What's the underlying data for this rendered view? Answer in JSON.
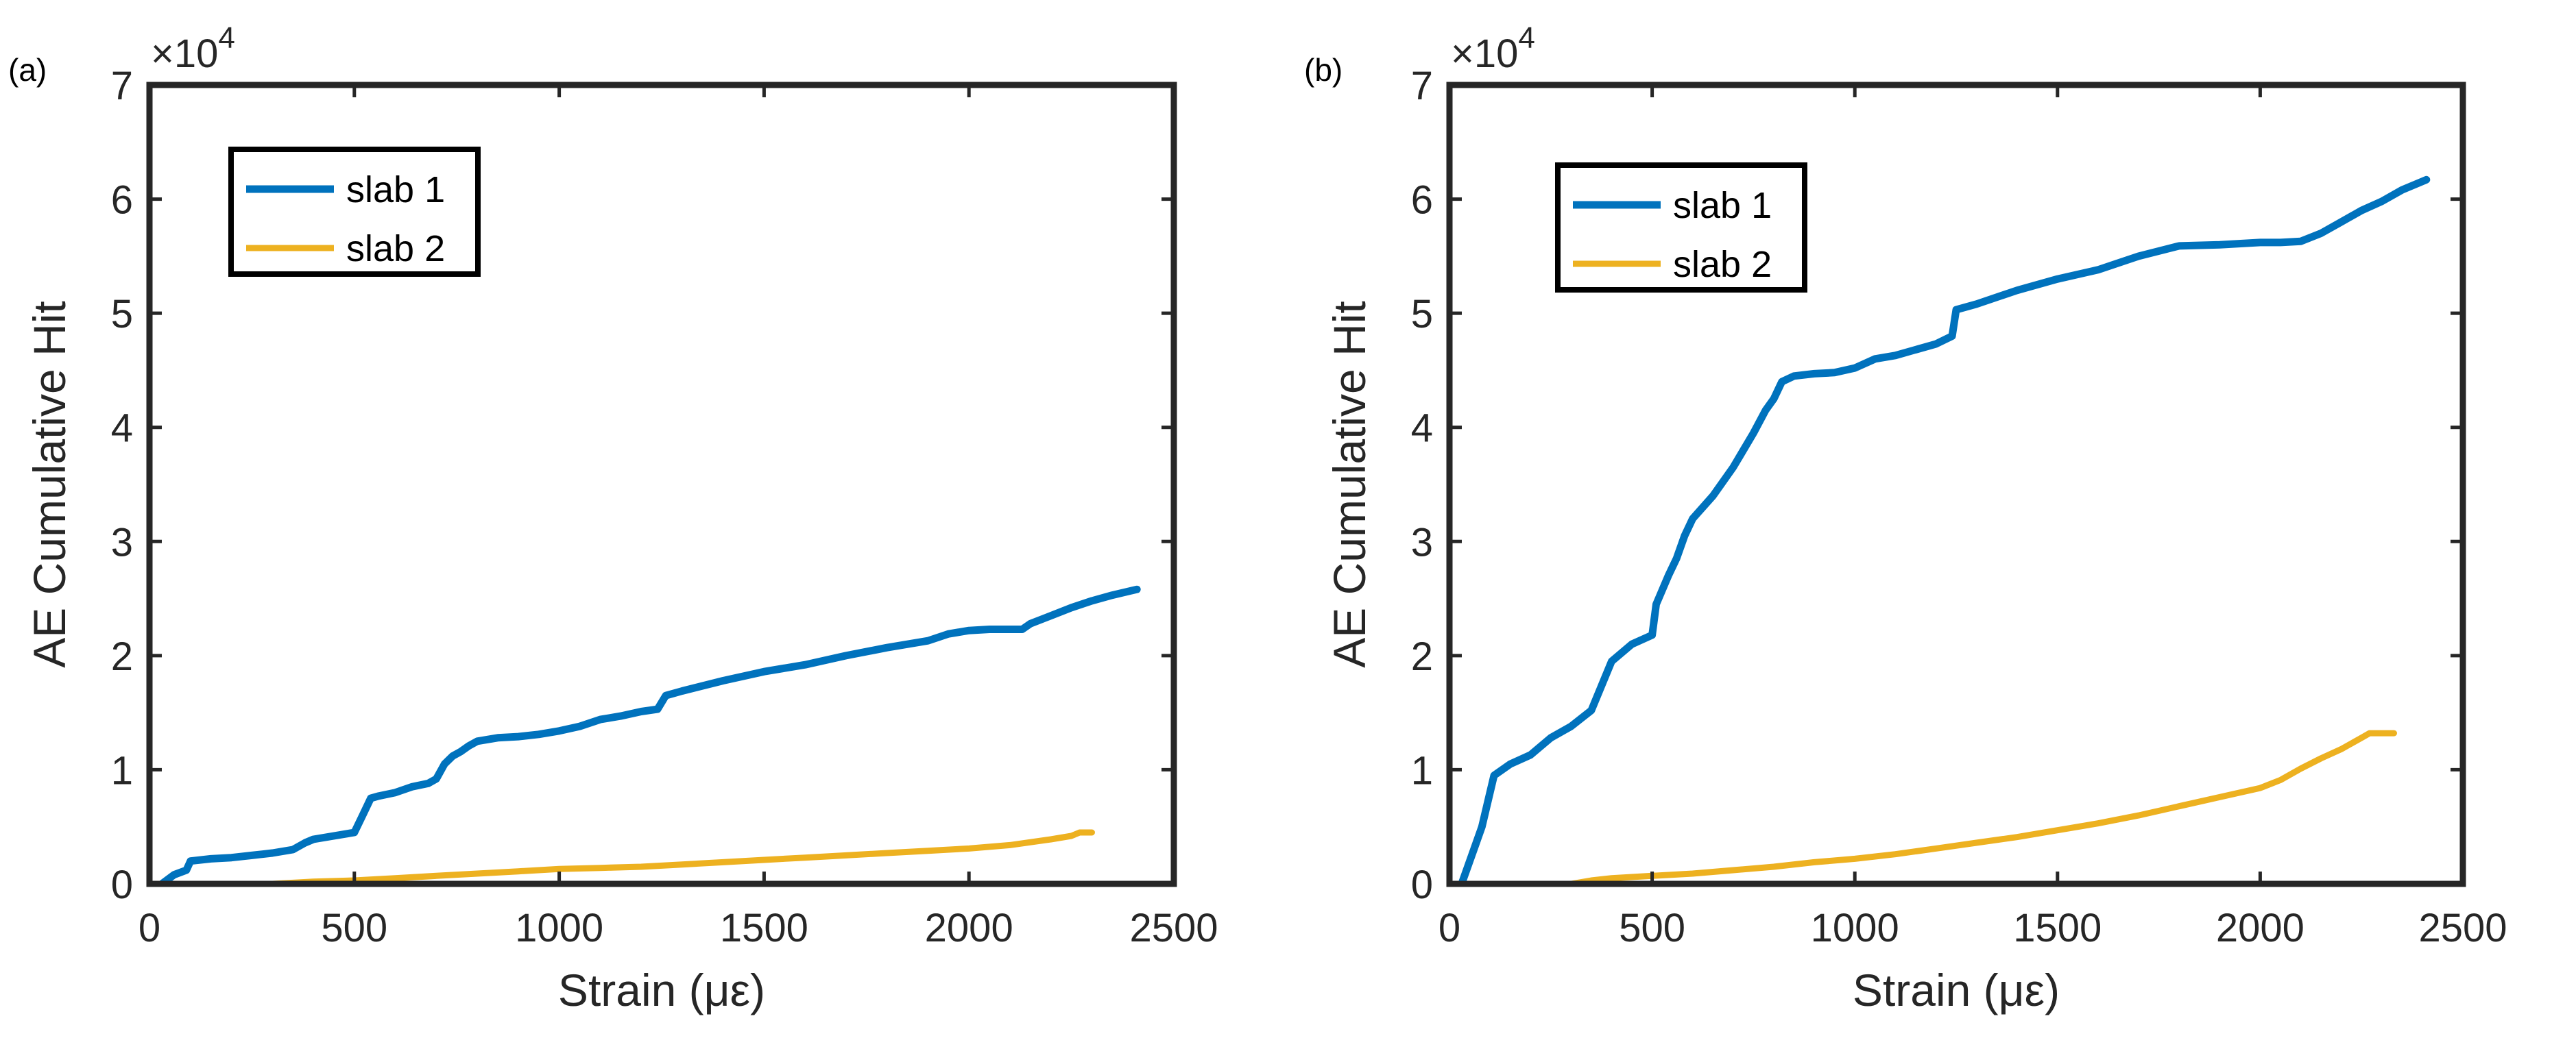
{
  "chart_data": [
    {
      "type": "line",
      "panel_label": "(a)",
      "xlabel": "Strain (με)",
      "ylabel": "AE Cumulative Hit",
      "y_exponent_label": "×10",
      "y_exponent_power": "4",
      "xlim": [
        0,
        2500
      ],
      "ylim": [
        0,
        70000
      ],
      "xticks": [
        0,
        500,
        1000,
        1500,
        2000,
        2500
      ],
      "yticks": [
        0,
        10000,
        20000,
        30000,
        40000,
        50000,
        60000,
        70000
      ],
      "yticklabels": [
        "0",
        "1",
        "2",
        "3",
        "4",
        "5",
        "6",
        "7"
      ],
      "xticklabels": [
        "0",
        "500",
        "1000",
        "1500",
        "2000",
        "2500"
      ],
      "grid": false,
      "legend_position": "upper-left",
      "series": [
        {
          "name": "slab 1",
          "color": "#0072BD",
          "x": [
            30,
            60,
            90,
            100,
            150,
            200,
            250,
            300,
            350,
            380,
            400,
            450,
            500,
            520,
            540,
            560,
            600,
            640,
            680,
            700,
            720,
            740,
            760,
            780,
            800,
            850,
            900,
            950,
            1000,
            1050,
            1100,
            1150,
            1200,
            1240,
            1260,
            1300,
            1400,
            1500,
            1600,
            1700,
            1800,
            1900,
            1950,
            2000,
            2050,
            2100,
            2130,
            2150,
            2200,
            2250,
            2300,
            2350,
            2410
          ],
          "y": [
            0,
            800,
            1200,
            2000,
            2200,
            2300,
            2500,
            2700,
            3000,
            3600,
            3900,
            4200,
            4500,
            6000,
            7500,
            7700,
            8000,
            8500,
            8800,
            9200,
            10500,
            11200,
            11600,
            12100,
            12500,
            12800,
            12900,
            13100,
            13400,
            13800,
            14400,
            14700,
            15100,
            15300,
            16500,
            16900,
            17800,
            18600,
            19200,
            20000,
            20700,
            21300,
            21900,
            22200,
            22300,
            22300,
            22300,
            22800,
            23500,
            24200,
            24800,
            25300,
            25800
          ]
        },
        {
          "name": "slab 2",
          "color": "#EDB120",
          "x": [
            130,
            200,
            300,
            400,
            500,
            600,
            700,
            800,
            900,
            1000,
            1100,
            1200,
            1300,
            1400,
            1500,
            1600,
            1700,
            1800,
            1900,
            2000,
            2100,
            2200,
            2250,
            2270,
            2300
          ],
          "y": [
            0,
            0,
            0,
            200,
            300,
            500,
            700,
            900,
            1100,
            1300,
            1400,
            1500,
            1700,
            1900,
            2100,
            2300,
            2500,
            2700,
            2900,
            3100,
            3400,
            3900,
            4200,
            4500,
            4500
          ]
        }
      ]
    },
    {
      "type": "line",
      "panel_label": "(b)",
      "xlabel": "Strain (με)",
      "ylabel": "AE Cumulative Hit",
      "y_exponent_label": "×10",
      "y_exponent_power": "4",
      "xlim": [
        0,
        2500
      ],
      "ylim": [
        0,
        70000
      ],
      "xticks": [
        0,
        500,
        1000,
        1500,
        2000,
        2500
      ],
      "yticks": [
        0,
        10000,
        20000,
        30000,
        40000,
        50000,
        60000,
        70000
      ],
      "yticklabels": [
        "0",
        "1",
        "2",
        "3",
        "4",
        "5",
        "6",
        "7"
      ],
      "xticklabels": [
        "0",
        "500",
        "1000",
        "1500",
        "2000",
        "2500"
      ],
      "grid": false,
      "legend_position": "upper-left",
      "series": [
        {
          "name": "slab 1",
          "color": "#0072BD",
          "x": [
            30,
            60,
            80,
            100,
            110,
            150,
            200,
            250,
            300,
            350,
            400,
            450,
            500,
            510,
            540,
            560,
            580,
            600,
            650,
            700,
            750,
            780,
            800,
            820,
            850,
            900,
            950,
            1000,
            1050,
            1100,
            1150,
            1200,
            1240,
            1250,
            1300,
            1400,
            1500,
            1600,
            1700,
            1800,
            1900,
            2000,
            2050,
            2100,
            2150,
            2200,
            2250,
            2300,
            2350,
            2410
          ],
          "y": [
            0,
            3000,
            5000,
            8000,
            9500,
            10500,
            11300,
            12800,
            13800,
            15200,
            19500,
            21000,
            21800,
            24500,
            27000,
            28500,
            30500,
            32000,
            34000,
            36500,
            39500,
            41500,
            42500,
            44000,
            44500,
            44700,
            44800,
            45200,
            46000,
            46300,
            46800,
            47300,
            48000,
            50300,
            50800,
            52000,
            53000,
            53800,
            55000,
            55900,
            56000,
            56200,
            56200,
            56300,
            57000,
            58000,
            59000,
            59800,
            60800,
            61700
          ]
        },
        {
          "name": "slab 2",
          "color": "#EDB120",
          "x": [
            130,
            200,
            300,
            350,
            400,
            500,
            600,
            700,
            800,
            900,
            1000,
            1100,
            1200,
            1300,
            1400,
            1500,
            1600,
            1700,
            1800,
            1900,
            2000,
            2050,
            2100,
            2150,
            2200,
            2250,
            2270,
            2300,
            2330
          ],
          "y": [
            0,
            0,
            0,
            300,
            500,
            700,
            900,
            1200,
            1500,
            1900,
            2200,
            2600,
            3100,
            3600,
            4100,
            4700,
            5300,
            6000,
            6800,
            7600,
            8400,
            9100,
            10100,
            11000,
            11800,
            12800,
            13200,
            13200,
            13200
          ]
        }
      ]
    }
  ]
}
